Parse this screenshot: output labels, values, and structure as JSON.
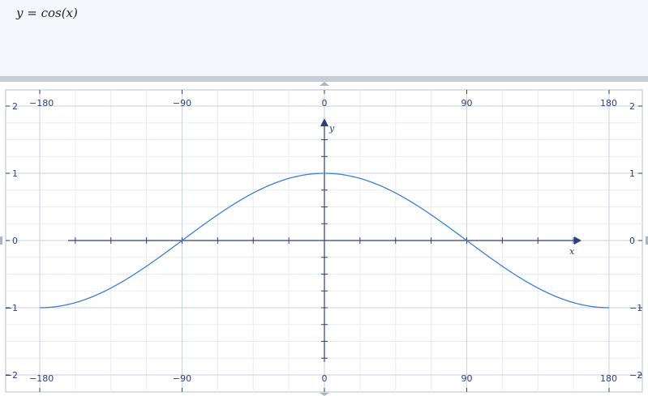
{
  "input": {
    "formula": "y = cos(x)"
  },
  "colors": {
    "curve": "#3a7fd5",
    "axis": "#2f3f7a",
    "grid_major": "#c9d1dd",
    "grid_minor": "#e9edf3",
    "input_bg": "#f3f6fa",
    "splitter": "#c9ced6"
  },
  "chart_data": {
    "type": "line",
    "title": "",
    "xlabel": "x",
    "ylabel": "y",
    "xlim": [
      -180,
      180
    ],
    "ylim": [
      -2,
      2
    ],
    "x_ticks": [
      "-180",
      "-90",
      "0",
      "90",
      "180"
    ],
    "y_ticks": [
      "2",
      "1",
      "0",
      "-1",
      "-2"
    ],
    "grid": true,
    "series": [
      {
        "x": [
          -180,
          -150,
          -120,
          -90,
          -60,
          -30,
          0,
          30,
          60,
          90,
          120,
          150,
          180
        ],
        "y": [
          -1,
          -0.866,
          -0.5,
          0,
          0.5,
          0.866,
          1,
          0.866,
          0.5,
          0,
          -0.5,
          -0.866,
          -1
        ]
      }
    ]
  }
}
